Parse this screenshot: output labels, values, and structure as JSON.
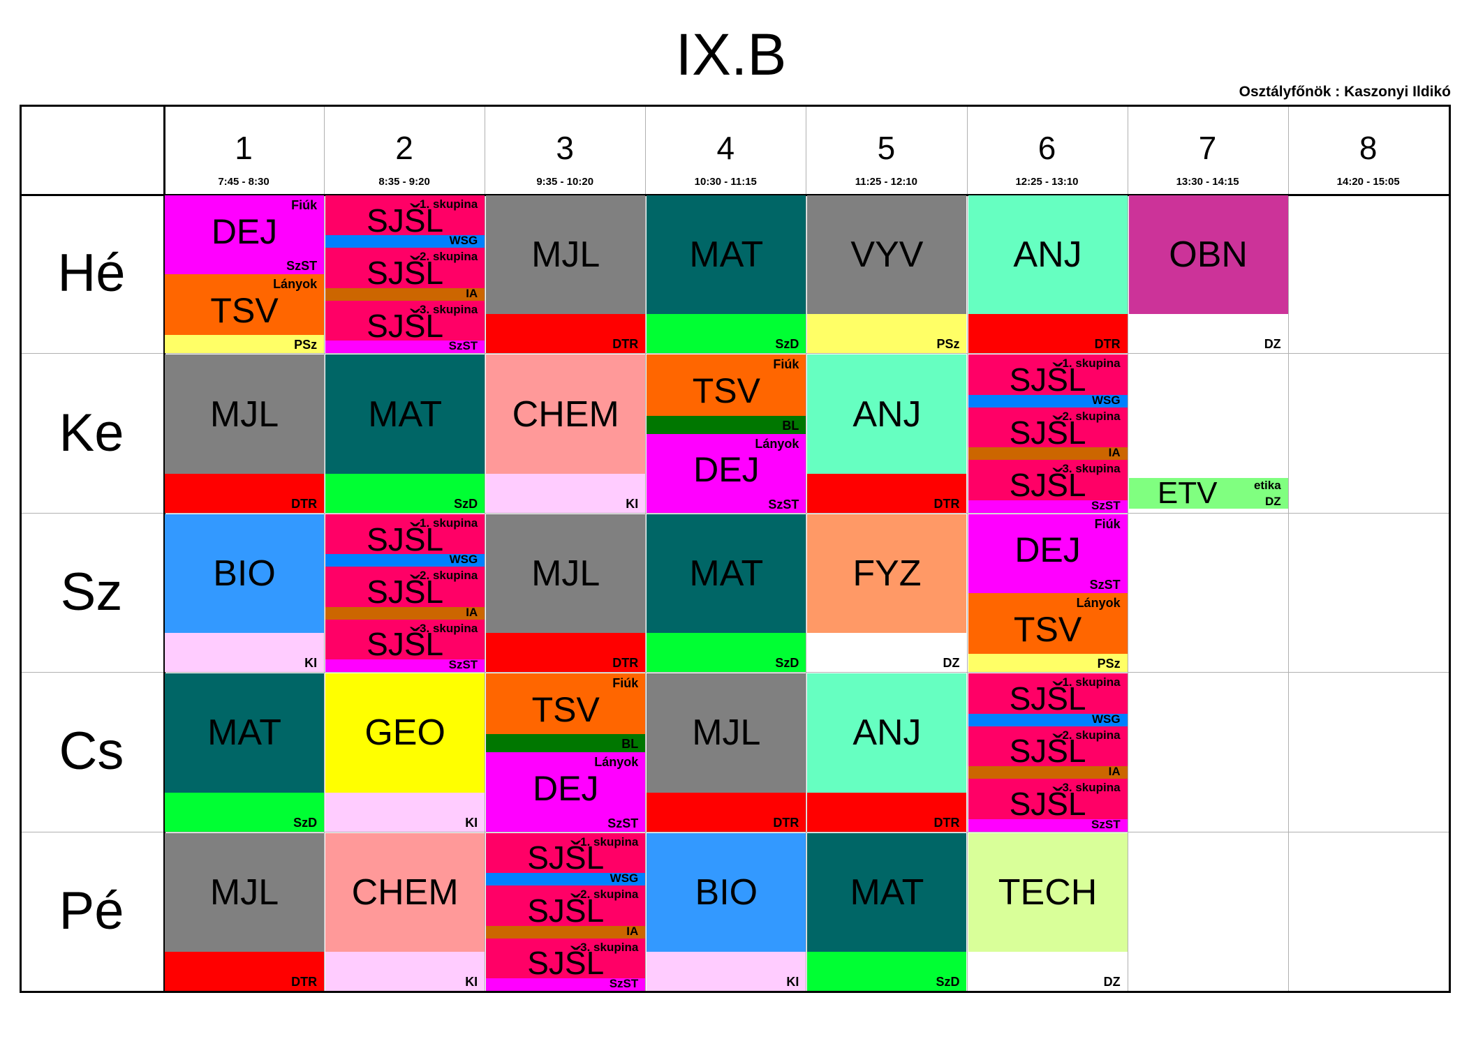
{
  "title": "IX.B",
  "teacher": "Osztályfőnök : Kaszonyi Ildikó",
  "periods": [
    {
      "num": "1",
      "time": "7:45 - 8:30"
    },
    {
      "num": "2",
      "time": "8:35 - 9:20"
    },
    {
      "num": "3",
      "time": "9:35 - 10:20"
    },
    {
      "num": "4",
      "time": "10:30 - 11:15"
    },
    {
      "num": "5",
      "time": "11:25 - 12:10"
    },
    {
      "num": "6",
      "time": "12:25 - 13:10"
    },
    {
      "num": "7",
      "time": "13:30 - 14:15"
    },
    {
      "num": "8",
      "time": "14:20 - 15:05"
    }
  ],
  "days": [
    "Hé",
    "Ke",
    "Sz",
    "Cs",
    "Pé"
  ],
  "colors": {
    "MJL": "#808080",
    "MAT": "#006666",
    "VYV": "#808080",
    "ANJ": "#66ffc1",
    "OBN": "#cc3399",
    "CHEM": "#ff9999",
    "BIO": "#3399ff",
    "FYZ": "#ff9966",
    "GEO": "#ffff00",
    "TECH": "#d9ff99",
    "DEJ": "#ff00ff",
    "TSV": "#ff6600",
    "SJSL": "#ff0066",
    "ETV": "#80ff80",
    "DTR": "#ff0000",
    "SzD": "#00ff33",
    "PSz": "#ffff66",
    "KI": "#ffccff",
    "DZ": "#ffffff",
    "SzST": "#ff00ff",
    "BL": "#007700",
    "WSG": "#0080ff",
    "IA": "#cc6600"
  },
  "cells": [
    {
      "day": 0,
      "period": 0,
      "type": "split",
      "parts": [
        {
          "subject": "DEJ",
          "top": "Fiúk",
          "teacher": "SzST"
        },
        {
          "subject": "TSV",
          "top": "Lányok",
          "teacher": "PSz"
        }
      ]
    },
    {
      "day": 0,
      "period": 1,
      "type": "groups",
      "parts": [
        {
          "subject": "SJŠL",
          "top": "1. skupina",
          "teacher": "WSG"
        },
        {
          "subject": "SJŠL",
          "top": "2. skupina",
          "teacher": "IA"
        },
        {
          "subject": "SJŠL",
          "top": "3. skupina",
          "teacher": "SzST"
        }
      ]
    },
    {
      "day": 0,
      "period": 2,
      "type": "single",
      "subject": "MJL",
      "teacher": "DTR"
    },
    {
      "day": 0,
      "period": 3,
      "type": "single",
      "subject": "MAT",
      "teacher": "SzD"
    },
    {
      "day": 0,
      "period": 4,
      "type": "single",
      "subject": "VYV",
      "teacher": "PSz"
    },
    {
      "day": 0,
      "period": 5,
      "type": "single",
      "subject": "ANJ",
      "teacher": "DTR"
    },
    {
      "day": 0,
      "period": 6,
      "type": "single",
      "subject": "OBN",
      "teacher": "DZ"
    },
    {
      "day": 1,
      "period": 0,
      "type": "single",
      "subject": "MJL",
      "teacher": "DTR"
    },
    {
      "day": 1,
      "period": 1,
      "type": "single",
      "subject": "MAT",
      "teacher": "SzD"
    },
    {
      "day": 1,
      "period": 2,
      "type": "single",
      "subject": "CHEM",
      "teacher": "KI"
    },
    {
      "day": 1,
      "period": 3,
      "type": "split",
      "parts": [
        {
          "subject": "TSV",
          "top": "Fiúk",
          "teacher": "BL"
        },
        {
          "subject": "DEJ",
          "top": "Lányok",
          "teacher": "SzST"
        }
      ]
    },
    {
      "day": 1,
      "period": 4,
      "type": "single",
      "subject": "ANJ",
      "teacher": "DTR"
    },
    {
      "day": 1,
      "period": 5,
      "type": "groups",
      "parts": [
        {
          "subject": "SJŠL",
          "top": "1. skupina",
          "teacher": "WSG"
        },
        {
          "subject": "SJŠL",
          "top": "2. skupina",
          "teacher": "IA"
        },
        {
          "subject": "SJŠL",
          "top": "3. skupina",
          "teacher": "SzST"
        }
      ]
    },
    {
      "day": 1,
      "period": 6,
      "type": "small",
      "subject": "ETV",
      "note": "etika",
      "teacher": "DZ"
    },
    {
      "day": 2,
      "period": 0,
      "type": "single",
      "subject": "BIO",
      "teacher": "KI"
    },
    {
      "day": 2,
      "period": 1,
      "type": "groups",
      "parts": [
        {
          "subject": "SJŠL",
          "top": "1. skupina",
          "teacher": "WSG"
        },
        {
          "subject": "SJŠL",
          "top": "2. skupina",
          "teacher": "IA"
        },
        {
          "subject": "SJŠL",
          "top": "3. skupina",
          "teacher": "SzST"
        }
      ]
    },
    {
      "day": 2,
      "period": 2,
      "type": "single",
      "subject": "MJL",
      "teacher": "DTR"
    },
    {
      "day": 2,
      "period": 3,
      "type": "single",
      "subject": "MAT",
      "teacher": "SzD"
    },
    {
      "day": 2,
      "period": 4,
      "type": "single",
      "subject": "FYZ",
      "teacher": "DZ"
    },
    {
      "day": 2,
      "period": 5,
      "type": "split",
      "parts": [
        {
          "subject": "DEJ",
          "top": "Fiúk",
          "teacher": "SzST"
        },
        {
          "subject": "TSV",
          "top": "Lányok",
          "teacher": "PSz"
        }
      ]
    },
    {
      "day": 3,
      "period": 0,
      "type": "single",
      "subject": "MAT",
      "teacher": "SzD"
    },
    {
      "day": 3,
      "period": 1,
      "type": "single",
      "subject": "GEO",
      "teacher": "KI"
    },
    {
      "day": 3,
      "period": 2,
      "type": "split",
      "parts": [
        {
          "subject": "TSV",
          "top": "Fiúk",
          "teacher": "BL"
        },
        {
          "subject": "DEJ",
          "top": "Lányok",
          "teacher": "SzST"
        }
      ]
    },
    {
      "day": 3,
      "period": 3,
      "type": "single",
      "subject": "MJL",
      "teacher": "DTR"
    },
    {
      "day": 3,
      "period": 4,
      "type": "single",
      "subject": "ANJ",
      "teacher": "DTR"
    },
    {
      "day": 3,
      "period": 5,
      "type": "groups",
      "parts": [
        {
          "subject": "SJŠL",
          "top": "1. skupina",
          "teacher": "WSG"
        },
        {
          "subject": "SJŠL",
          "top": "2. skupina",
          "teacher": "IA"
        },
        {
          "subject": "SJŠL",
          "top": "3. skupina",
          "teacher": "SzST"
        }
      ]
    },
    {
      "day": 4,
      "period": 0,
      "type": "single",
      "subject": "MJL",
      "teacher": "DTR"
    },
    {
      "day": 4,
      "period": 1,
      "type": "single",
      "subject": "CHEM",
      "teacher": "KI"
    },
    {
      "day": 4,
      "period": 2,
      "type": "groups",
      "parts": [
        {
          "subject": "SJŠL",
          "top": "1. skupina",
          "teacher": "WSG"
        },
        {
          "subject": "SJŠL",
          "top": "2. skupina",
          "teacher": "IA"
        },
        {
          "subject": "SJŠL",
          "top": "3. skupina",
          "teacher": "SzST"
        }
      ]
    },
    {
      "day": 4,
      "period": 3,
      "type": "single",
      "subject": "BIO",
      "teacher": "KI"
    },
    {
      "day": 4,
      "period": 4,
      "type": "single",
      "subject": "MAT",
      "teacher": "SzD"
    },
    {
      "day": 4,
      "period": 5,
      "type": "single",
      "subject": "TECH",
      "teacher": "DZ"
    }
  ]
}
